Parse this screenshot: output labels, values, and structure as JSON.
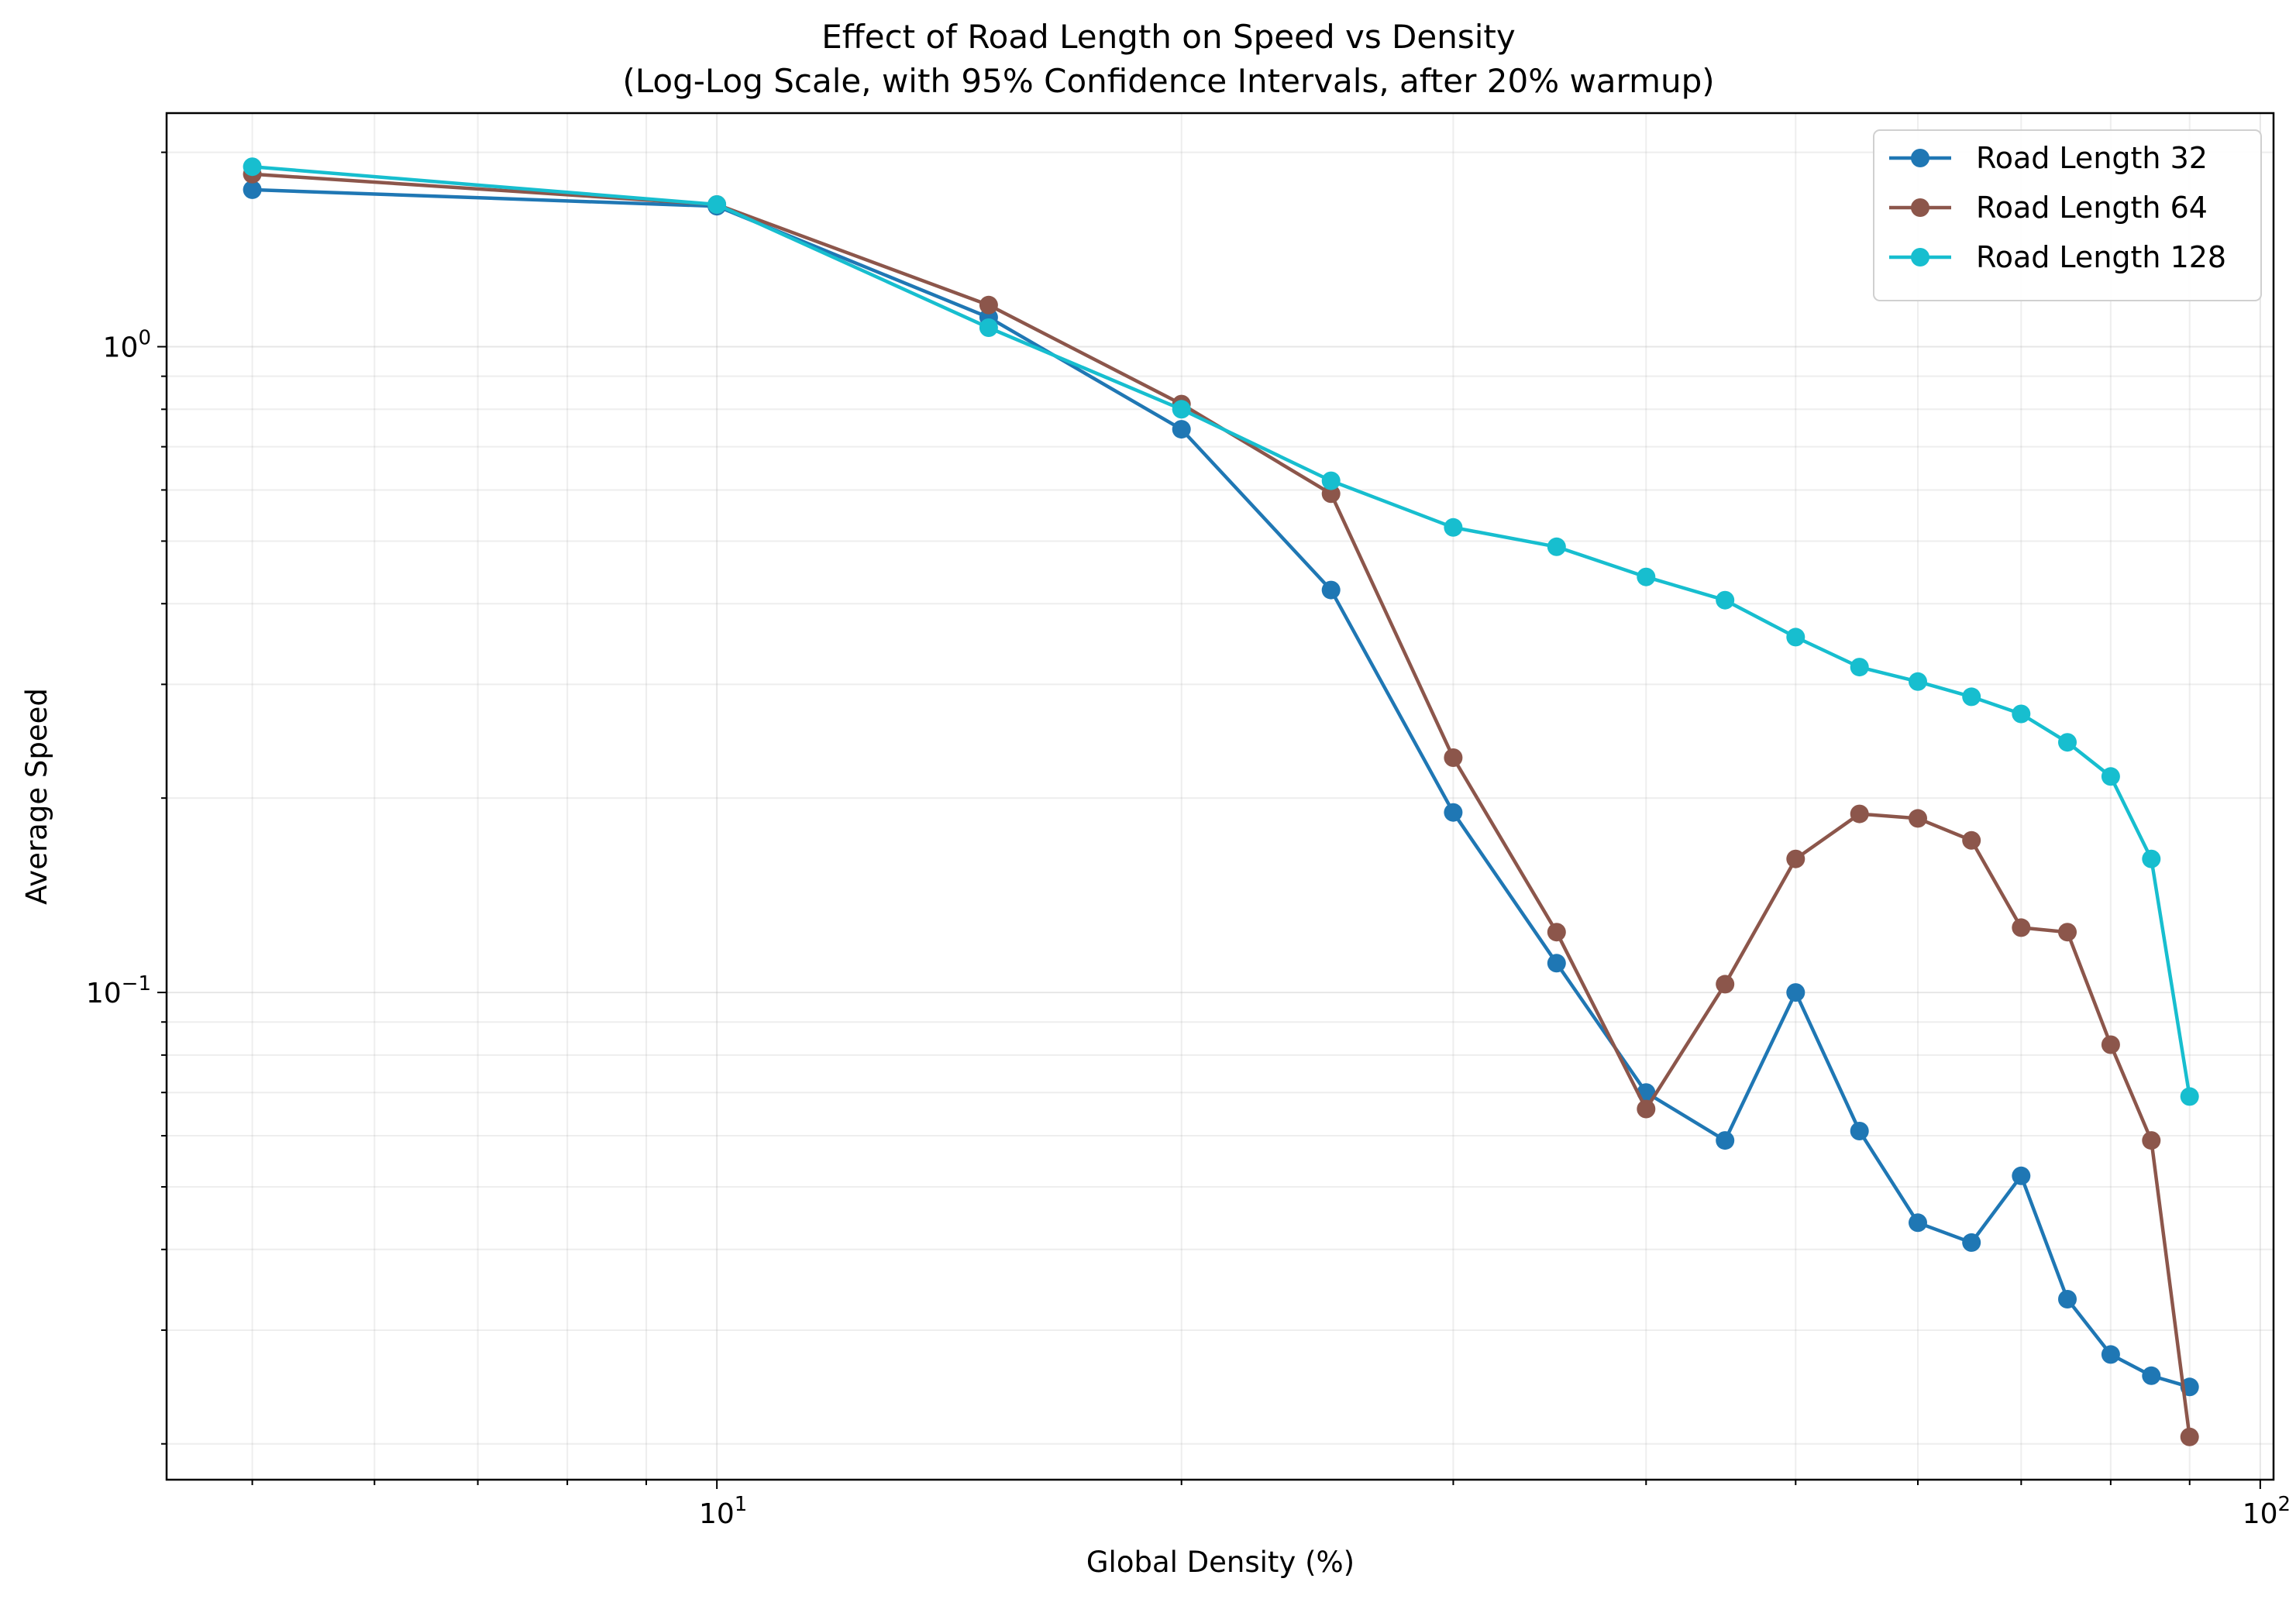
{
  "chart_data": {
    "type": "line",
    "title": "Effect of Road Length on Speed vs Density",
    "subtitle": "(Log-Log Scale, with 95% Confidence Intervals, after 20% warmup)",
    "xlabel": "Global Density (%)",
    "ylabel": "Average Speed",
    "xscale": "log",
    "yscale": "log",
    "xlim": [
      4.4,
      102
    ],
    "ylim": [
      0.0176,
      2.3
    ],
    "x_ticks": [
      {
        "value": 10,
        "base": "10",
        "exp": "1"
      },
      {
        "value": 100,
        "base": "10",
        "exp": "2"
      }
    ],
    "y_ticks": [
      {
        "value": 0.1,
        "base": "10",
        "exp": "−1"
      },
      {
        "value": 1,
        "base": "10",
        "exp": "0"
      }
    ],
    "grid": true,
    "legend_position": "top-right",
    "x": [
      5,
      10,
      15,
      20,
      25,
      30,
      35,
      40,
      45,
      50,
      55,
      60,
      65,
      70,
      75,
      80,
      85,
      90
    ],
    "series": [
      {
        "name": "Road Length 32",
        "color": "#1f77b4",
        "values": [
          1.75,
          1.65,
          1.11,
          0.745,
          0.42,
          0.19,
          0.111,
          0.07,
          0.059,
          0.1,
          0.061,
          0.044,
          0.041,
          0.052,
          0.0335,
          0.0275,
          0.0255,
          0.0245
        ]
      },
      {
        "name": "Road Length 64",
        "color": "#8c564b",
        "values": [
          1.85,
          1.66,
          1.16,
          0.815,
          0.592,
          0.231,
          0.124,
          0.066,
          0.103,
          0.161,
          0.189,
          0.186,
          0.172,
          0.126,
          0.124,
          0.083,
          0.059,
          0.0205
        ]
      },
      {
        "name": "Road Length 128",
        "color": "#17becf",
        "values": [
          1.9,
          1.66,
          1.07,
          0.8,
          0.62,
          0.525,
          0.49,
          0.44,
          0.405,
          0.355,
          0.319,
          0.303,
          0.287,
          0.27,
          0.244,
          0.216,
          0.161,
          0.069
        ]
      }
    ]
  }
}
